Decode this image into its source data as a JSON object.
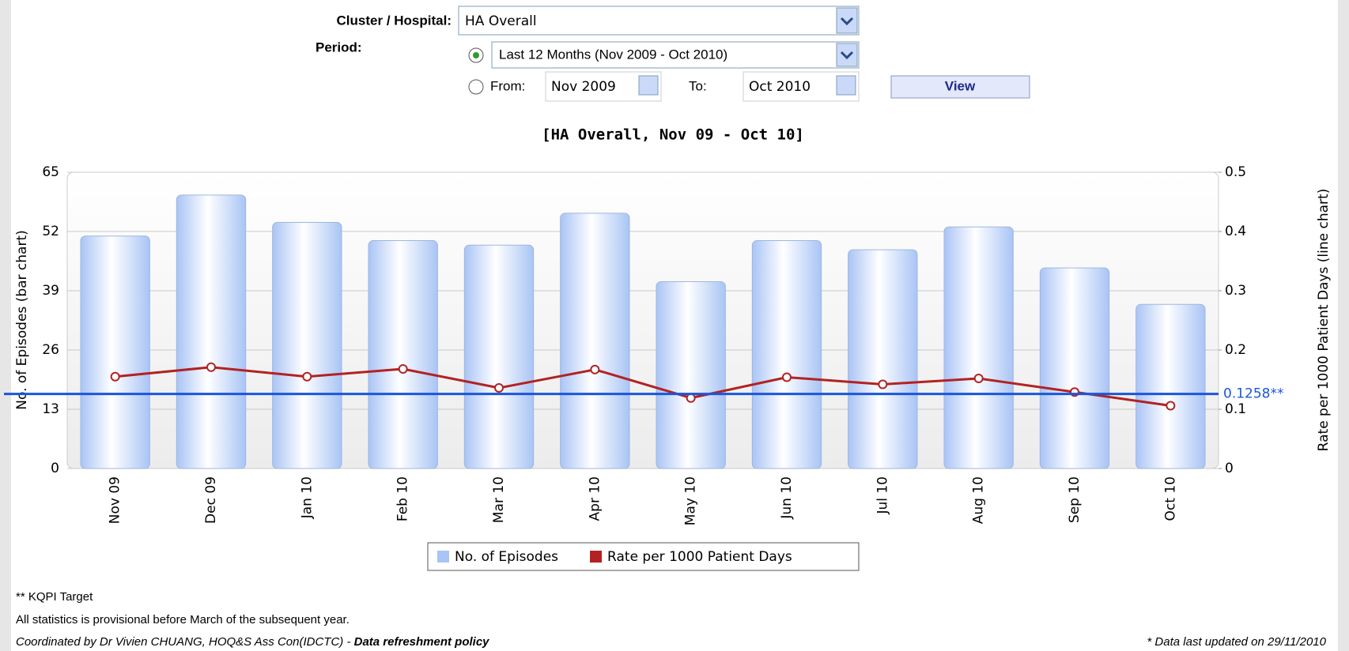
{
  "form": {
    "cluster_label": "Cluster / Hospital:",
    "cluster_value": "HA Overall",
    "period_label": "Period:",
    "period_preset": "Last 12 Months (Nov 2009 - Oct 2010)",
    "from_label": "From:",
    "from_value": "Nov 2009",
    "to_label": "To:",
    "to_value": "Oct 2010",
    "view_button": "View"
  },
  "chart_data": {
    "type": "bar",
    "title": "[HA Overall, Nov 09 - Oct 10]",
    "y_label": "No. of Episodes (bar chart)",
    "y2_label": "Rate per 1000 Patient Days (line chart)",
    "categories": [
      "Nov 09",
      "Dec 09",
      "Jan 10",
      "Feb 10",
      "Mar 10",
      "Apr 10",
      "May 10",
      "Jun 10",
      "Jul 10",
      "Aug 10",
      "Sep 10",
      "Oct 10"
    ],
    "series": [
      {
        "name": "No. of Episodes",
        "color": "#a9c4f5",
        "values": [
          51,
          60,
          54,
          50,
          49,
          56,
          41,
          50,
          48,
          53,
          44,
          36
        ]
      },
      {
        "name": "Rate per 1000 Patient Days",
        "color": "#b22222",
        "type": "line",
        "axis": "y2",
        "values": [
          0.155,
          0.171,
          0.155,
          0.168,
          0.136,
          0.167,
          0.119,
          0.154,
          0.142,
          0.152,
          0.129,
          0.106
        ]
      }
    ],
    "ylim": [
      0,
      65
    ],
    "yticks": [
      0,
      13,
      26,
      39,
      52,
      65
    ],
    "y2lim": [
      0,
      0.5
    ],
    "y2ticks": [
      0,
      0.1,
      0.2,
      0.3,
      0.4,
      0.5
    ],
    "target": {
      "value": 0.1258,
      "label": "0.1258**",
      "color": "#1a56db"
    },
    "grid": true,
    "legend": "bottom"
  },
  "footer": {
    "note": "** KQPI Target",
    "provisional": "All statistics is provisional before March of the subsequent year.",
    "credit": "Coordinated by Dr Vivien CHUANG, HOQ&S Ass Con(IDCTC) - ",
    "policy_link": "Data refreshment policy",
    "updated": "* Data last updated on 29/11/2010"
  }
}
